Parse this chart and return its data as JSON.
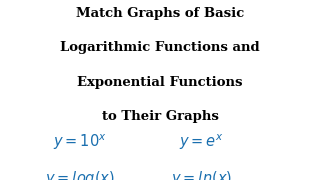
{
  "title_lines": [
    "Match Graphs of Basic",
    "Logarithmic Functions and",
    "Exponential Functions",
    "to Their Graphs"
  ],
  "eq_row1_left": "$y = 10^x$",
  "eq_row1_right": "$y = e^x$",
  "eq_row2_left": "$y = log(x)$",
  "eq_row2_right": "$y = ln(x)$",
  "title_color": "#000000",
  "equation_color": "#1a6faf",
  "background_color": "#ffffff",
  "title_fontsize": 9.5,
  "equation_fontsize": 10.5
}
